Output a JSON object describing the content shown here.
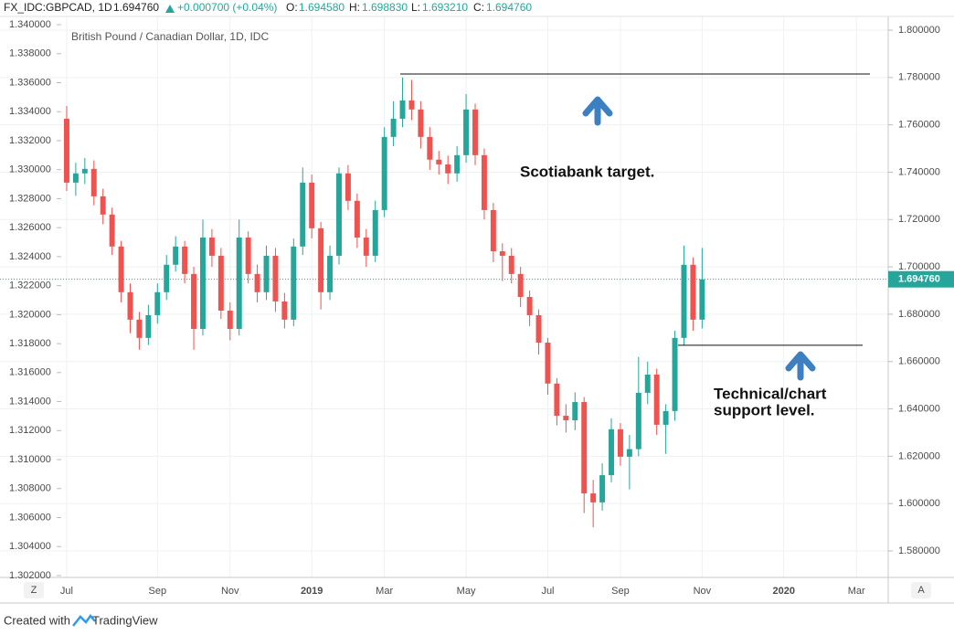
{
  "chart_data": {
    "type": "candlestick",
    "header": {
      "symbol": "FX_IDC:GBPCAD, 1D",
      "last": "1.694760",
      "change": "+0.000700 (+0.04%)",
      "o_label": "O:",
      "o": "1.694580",
      "h_label": "H:",
      "h": "1.698830",
      "l_label": "L:",
      "l": "1.693210",
      "c_label": "C:",
      "c": "1.694760"
    },
    "title": "British Pound / Canadian Dollar, 1D, IDC",
    "up_color": "#26a69a",
    "down_color": "#ef5350",
    "categories": [
      "Jul",
      null,
      null,
      null,
      null,
      null,
      null,
      null,
      null,
      null,
      "Sep",
      null,
      null,
      null,
      null,
      null,
      null,
      null,
      "Nov",
      null,
      null,
      null,
      null,
      null,
      null,
      null,
      null,
      "2019",
      null,
      null,
      null,
      null,
      null,
      null,
      null,
      "Mar",
      null,
      null,
      null,
      null,
      null,
      null,
      null,
      null,
      "May",
      null,
      null,
      null,
      null,
      null,
      null,
      null,
      null,
      "Jul",
      null,
      null,
      null,
      null,
      null,
      null,
      null,
      "Sep",
      null,
      null,
      null,
      null,
      null,
      null,
      null,
      null,
      "Nov",
      null,
      null,
      null,
      null,
      null,
      null,
      null,
      null,
      "2020",
      null,
      null,
      null,
      null,
      null,
      null,
      null,
      "Mar",
      null,
      null,
      null
    ],
    "bold_categories": [
      "2019",
      "2020"
    ],
    "open": [
      1.7626,
      1.7356,
      1.7395,
      1.7414,
      1.7298,
      1.7221,
      1.7086,
      1.6893,
      1.6777,
      1.67,
      1.6796,
      1.6893,
      1.7009,
      1.7086,
      1.697,
      1.6738,
      1.7124,
      1.7047,
      1.6815,
      1.6738,
      1.7124,
      1.697,
      1.6893,
      1.7047,
      1.6854,
      1.6777,
      1.7086,
      1.7356,
      1.7163,
      1.6893,
      1.7047,
      1.7395,
      1.7279,
      1.7124,
      1.7047,
      1.724,
      1.7549,
      1.7626,
      1.7703,
      1.7665,
      1.7549,
      1.7453,
      1.7433,
      1.7395,
      1.7472,
      1.7665,
      1.7472,
      1.724,
      1.7066,
      1.7047,
      1.697,
      1.6873,
      1.6796,
      1.668,
      1.6507,
      1.6371,
      1.6352,
      1.6429,
      1.6043,
      1.6005,
      1.612,
      1.6314,
      1.6198,
      1.623,
      1.6468,
      1.6545,
      1.6333,
      1.6391,
      1.67,
      1.7009,
      1.6777,
      null,
      null,
      null,
      null,
      null,
      null,
      null,
      null,
      null,
      null,
      null,
      null,
      null,
      null,
      null,
      null,
      null,
      null,
      null,
      null
    ],
    "high": [
      1.768,
      1.744,
      1.746,
      1.745,
      1.733,
      1.725,
      1.711,
      1.693,
      1.681,
      1.684,
      1.693,
      1.705,
      1.713,
      1.711,
      1.7,
      1.72,
      1.716,
      1.708,
      1.685,
      1.72,
      1.715,
      1.701,
      1.709,
      1.708,
      1.689,
      1.712,
      1.742,
      1.739,
      1.719,
      1.709,
      1.742,
      1.743,
      1.731,
      1.716,
      1.728,
      1.759,
      1.77,
      1.78,
      1.779,
      1.77,
      1.759,
      1.749,
      1.747,
      1.751,
      1.773,
      1.769,
      1.75,
      1.727,
      1.71,
      1.708,
      1.7,
      1.69,
      1.682,
      1.67,
      1.653,
      1.642,
      1.647,
      1.645,
      1.61,
      1.617,
      1.636,
      1.634,
      1.629,
      1.662,
      1.66,
      1.657,
      1.642,
      1.673,
      1.709,
      1.704,
      1.708,
      null,
      null,
      null,
      null,
      null,
      null,
      null,
      null,
      null,
      null,
      null,
      null,
      null,
      null,
      null,
      null,
      null,
      null,
      null,
      null
    ],
    "low": [
      1.732,
      1.73,
      1.735,
      1.726,
      1.718,
      1.705,
      1.685,
      1.672,
      1.665,
      1.667,
      1.676,
      1.686,
      1.698,
      1.693,
      1.665,
      1.671,
      1.7,
      1.678,
      1.669,
      1.671,
      1.693,
      1.685,
      1.686,
      1.681,
      1.674,
      1.675,
      1.705,
      1.712,
      1.682,
      1.686,
      1.701,
      1.724,
      1.708,
      1.7,
      1.702,
      1.721,
      1.751,
      1.759,
      1.762,
      1.75,
      1.741,
      1.739,
      1.735,
      1.736,
      1.744,
      1.743,
      1.72,
      1.702,
      1.694,
      1.693,
      1.683,
      1.675,
      1.663,
      1.646,
      1.633,
      1.63,
      1.631,
      1.596,
      1.59,
      1.597,
      1.609,
      1.616,
      1.606,
      1.62,
      1.642,
      1.629,
      1.621,
      1.635,
      1.667,
      1.673,
      1.674,
      null,
      null,
      null,
      null,
      null,
      null,
      null,
      null,
      null,
      null,
      null,
      null,
      null,
      null,
      null,
      null,
      null,
      null,
      null,
      null
    ],
    "close": [
      1.7356,
      1.7395,
      1.7414,
      1.7298,
      1.7221,
      1.7086,
      1.6893,
      1.6777,
      1.67,
      1.6796,
      1.6893,
      1.7009,
      1.7086,
      1.697,
      1.6738,
      1.7124,
      1.7047,
      1.6815,
      1.6738,
      1.7124,
      1.697,
      1.6893,
      1.7047,
      1.6854,
      1.6777,
      1.7086,
      1.7356,
      1.7163,
      1.6893,
      1.7047,
      1.7395,
      1.7279,
      1.7124,
      1.7047,
      1.724,
      1.7549,
      1.7626,
      1.7703,
      1.7665,
      1.7549,
      1.7453,
      1.7433,
      1.7395,
      1.7472,
      1.7665,
      1.7472,
      1.724,
      1.7066,
      1.7047,
      1.697,
      1.6873,
      1.6796,
      1.668,
      1.6507,
      1.6371,
      1.6352,
      1.6429,
      1.6043,
      1.6005,
      1.612,
      1.6314,
      1.6198,
      1.623,
      1.6468,
      1.6545,
      1.6333,
      1.6391,
      1.67,
      1.7009,
      1.6777,
      1.69476,
      null,
      null,
      null,
      null,
      null,
      null,
      null,
      null,
      null,
      null,
      null,
      null,
      null,
      null,
      null,
      null,
      null,
      null,
      null,
      null
    ],
    "ylim": [
      1.30187,
      1.34057
    ],
    "yticks": [
      {
        "value": 1.302,
        "label": "1.302000"
      },
      {
        "value": 1.304,
        "label": "1.304000"
      },
      {
        "value": 1.306,
        "label": "1.306000"
      },
      {
        "value": 1.308,
        "label": "1.308000"
      },
      {
        "value": 1.31,
        "label": "1.310000"
      },
      {
        "value": 1.312,
        "label": "1.312000"
      },
      {
        "value": 1.314,
        "label": "1.314000"
      },
      {
        "value": 1.316,
        "label": "1.316000"
      },
      {
        "value": 1.318,
        "label": "1.318000"
      },
      {
        "value": 1.32,
        "label": "1.320000"
      },
      {
        "value": 1.322,
        "label": "1.322000"
      },
      {
        "value": 1.324,
        "label": "1.324000"
      },
      {
        "value": 1.326,
        "label": "1.326000"
      },
      {
        "value": 1.328,
        "label": "1.328000"
      },
      {
        "value": 1.33,
        "label": "1.330000"
      },
      {
        "value": 1.332,
        "label": "1.332000"
      },
      {
        "value": 1.334,
        "label": "1.334000"
      },
      {
        "value": 1.336,
        "label": "1.336000"
      },
      {
        "value": 1.338,
        "label": "1.338000"
      },
      {
        "value": 1.34,
        "label": "1.340000"
      }
    ],
    "y2lim": [
      1.5688,
      1.8058
    ],
    "y2ticks": [
      {
        "value": 1.58,
        "label": "1.580000"
      },
      {
        "value": 1.6,
        "label": "1.600000"
      },
      {
        "value": 1.62,
        "label": "1.620000"
      },
      {
        "value": 1.64,
        "label": "1.640000"
      },
      {
        "value": 1.66,
        "label": "1.660000"
      },
      {
        "value": 1.68,
        "label": "1.680000"
      },
      {
        "value": 1.7,
        "label": "1.700000"
      },
      {
        "value": 1.72,
        "label": "1.720000"
      },
      {
        "value": 1.74,
        "label": "1.740000"
      },
      {
        "value": 1.76,
        "label": "1.760000"
      },
      {
        "value": 1.78,
        "label": "1.780000"
      },
      {
        "value": 1.8,
        "label": "1.800000"
      }
    ],
    "grid": true,
    "annotations": [
      {
        "lines": [
          "Scotiabank target."
        ],
        "value": 1.7815
      },
      {
        "lines": [
          "Technical/chart",
          "support level."
        ],
        "value": 1.6669
      }
    ],
    "footer": {
      "created": "Created with",
      "brand": "TradingView"
    },
    "buttons": {
      "left": "Z",
      "right": "A"
    }
  }
}
